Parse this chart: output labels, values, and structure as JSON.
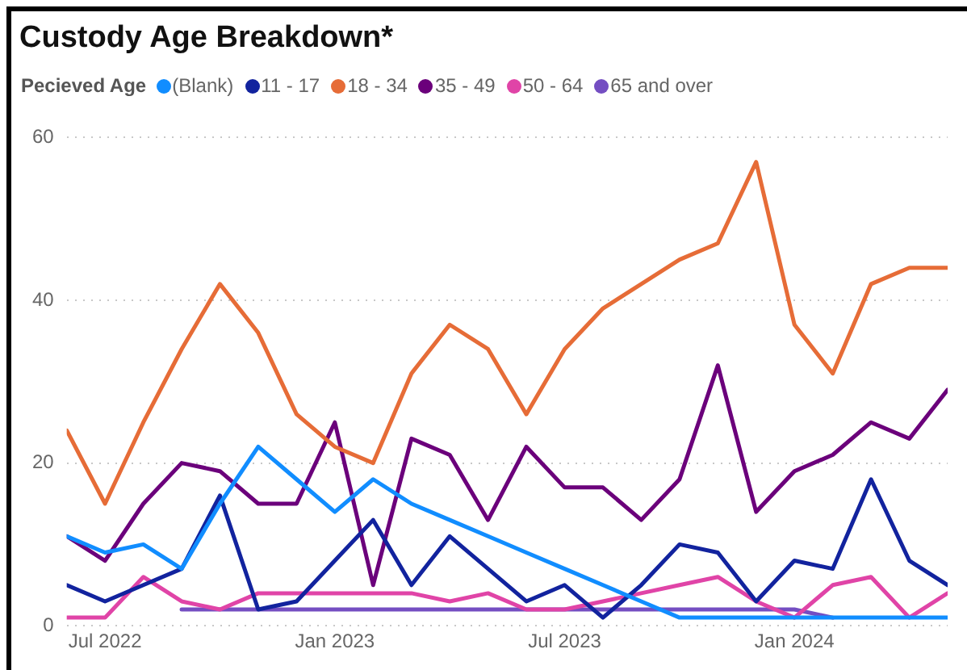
{
  "chart_data": {
    "type": "line",
    "title": "Custody Age Breakdown*",
    "legend_title": "Pecieved Age",
    "legend": "top left",
    "grid": "y",
    "marker": "none",
    "x": [
      "2022-06",
      "2022-07",
      "2022-08",
      "2022-09",
      "2022-10",
      "2022-11",
      "2022-12",
      "2023-01",
      "2023-02",
      "2023-03",
      "2023-04",
      "2023-05",
      "2023-06",
      "2023-07",
      "2023-08",
      "2023-09",
      "2023-10",
      "2023-11",
      "2023-12",
      "2024-01",
      "2024-02",
      "2024-03",
      "2024-04",
      "2024-05"
    ],
    "xlim": [
      "2022-06",
      "2024-05"
    ],
    "xticks": [
      {
        "value": "2022-07",
        "label": "Jul 2022"
      },
      {
        "value": "2023-01",
        "label": "Jan 2023"
      },
      {
        "value": "2023-07",
        "label": "Jul 2023"
      },
      {
        "value": "2024-01",
        "label": "Jan 2024"
      }
    ],
    "ylim": [
      0,
      60
    ],
    "yticks": [
      0,
      20,
      40,
      60
    ],
    "series": [
      {
        "name": "(Blank)",
        "color": "#118dff",
        "values": [
          11,
          9,
          10,
          7,
          15,
          22,
          18,
          14,
          18,
          15,
          13,
          11,
          9,
          7,
          5,
          3,
          1,
          1,
          1,
          1,
          1,
          1,
          1,
          1
        ]
      },
      {
        "name": "11 - 17",
        "color": "#12239e",
        "values": [
          5,
          3,
          5,
          7,
          16,
          2,
          3,
          8,
          13,
          5,
          11,
          7,
          3,
          5,
          1,
          5,
          10,
          9,
          3,
          8,
          7,
          18,
          8,
          5
        ]
      },
      {
        "name": "18 - 34",
        "color": "#e66c37",
        "values": [
          24,
          15,
          25,
          34,
          42,
          36,
          26,
          22,
          20,
          31,
          37,
          34,
          26,
          34,
          39,
          42,
          45,
          47,
          57,
          37,
          31,
          42,
          44,
          44
        ]
      },
      {
        "name": "35 - 49",
        "color": "#6b007b",
        "values": [
          11,
          8,
          15,
          20,
          19,
          15,
          15,
          25,
          5,
          23,
          21,
          13,
          22,
          17,
          17,
          13,
          18,
          32,
          14,
          19,
          21,
          25,
          23,
          29
        ]
      },
      {
        "name": "50 - 64",
        "color": "#e044a7",
        "values": [
          1,
          1,
          6,
          3,
          2,
          4,
          4,
          4,
          4,
          4,
          3,
          4,
          2,
          2,
          3,
          4,
          5,
          6,
          3,
          1,
          5,
          6,
          1,
          4
        ]
      },
      {
        "name": "65 and over",
        "color": "#744ec2",
        "values": [
          null,
          null,
          null,
          2,
          2,
          2,
          2,
          2,
          2,
          2,
          2,
          2,
          2,
          2,
          2,
          2,
          2,
          2,
          2,
          2,
          1,
          null,
          null,
          null
        ]
      }
    ]
  }
}
